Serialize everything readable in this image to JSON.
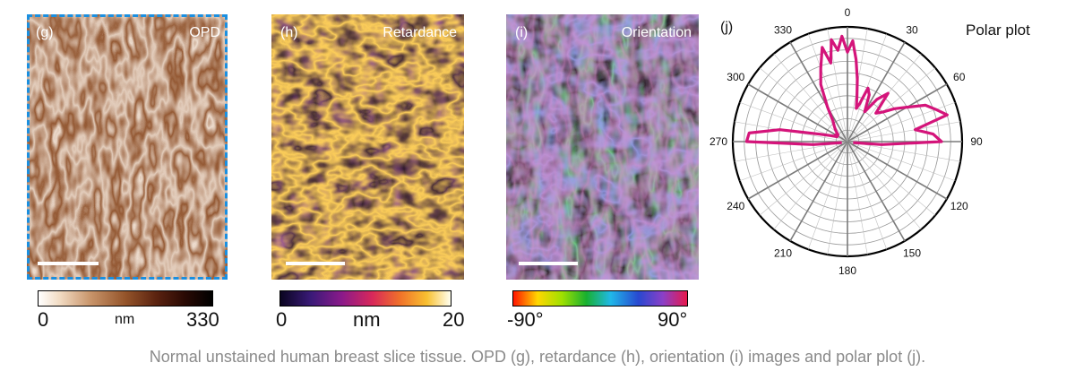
{
  "panels": [
    {
      "id": "g",
      "label": "(g)",
      "title": "OPD",
      "colorbar": {
        "min": "0",
        "unit": "nm",
        "max": "330"
      }
    },
    {
      "id": "h",
      "label": "(h)",
      "title": "Retardance",
      "colorbar": {
        "min": "0",
        "unit": "nm",
        "max": "20"
      }
    },
    {
      "id": "i",
      "label": "(i)",
      "title": "Orientation",
      "colorbar": {
        "min": "-90°",
        "max": "90°"
      }
    }
  ],
  "polar": {
    "label": "(j)",
    "title": "Polar plot",
    "angle_labels": [
      "0",
      "30",
      "60",
      "90",
      "120",
      "150",
      "180",
      "210",
      "240",
      "270",
      "300",
      "330"
    ],
    "line_color": "#d4147a",
    "chart_data": {
      "type": "line",
      "coordinate_system": "polar",
      "angle_deg": [
        -100,
        -95,
        -90,
        -85,
        -80,
        -75,
        -70,
        -65,
        -60,
        -55,
        -50,
        -45,
        -40,
        -35,
        -30,
        -25,
        -20,
        -15,
        -12,
        -9,
        -6,
        -3,
        0,
        3,
        6,
        9,
        12,
        15,
        18,
        21,
        25,
        30,
        35,
        40,
        45,
        50,
        55,
        60,
        65,
        70,
        75,
        80,
        85,
        90,
        95,
        100
      ],
      "r_relative": [
        0.05,
        0.3,
        0.88,
        0.86,
        0.6,
        0.25,
        0.15,
        0.1,
        0.12,
        0.1,
        0.12,
        0.15,
        0.18,
        0.22,
        0.35,
        0.55,
        0.68,
        0.85,
        0.7,
        0.9,
        0.8,
        0.92,
        0.78,
        0.88,
        0.72,
        0.55,
        0.4,
        0.3,
        0.35,
        0.5,
        0.45,
        0.3,
        0.45,
        0.55,
        0.35,
        0.4,
        0.5,
        0.6,
        0.75,
        0.82,
        0.9,
        0.6,
        0.75,
        0.82,
        0.3,
        0.05
      ],
      "grid": true
    }
  },
  "colors": {
    "g_border": "#1a8fe0",
    "polar_line": "#d4147a"
  },
  "caption": "Normal unstained human breast slice tissue. OPD (g), retardance (h), orientation (i) images and polar plot (j)."
}
